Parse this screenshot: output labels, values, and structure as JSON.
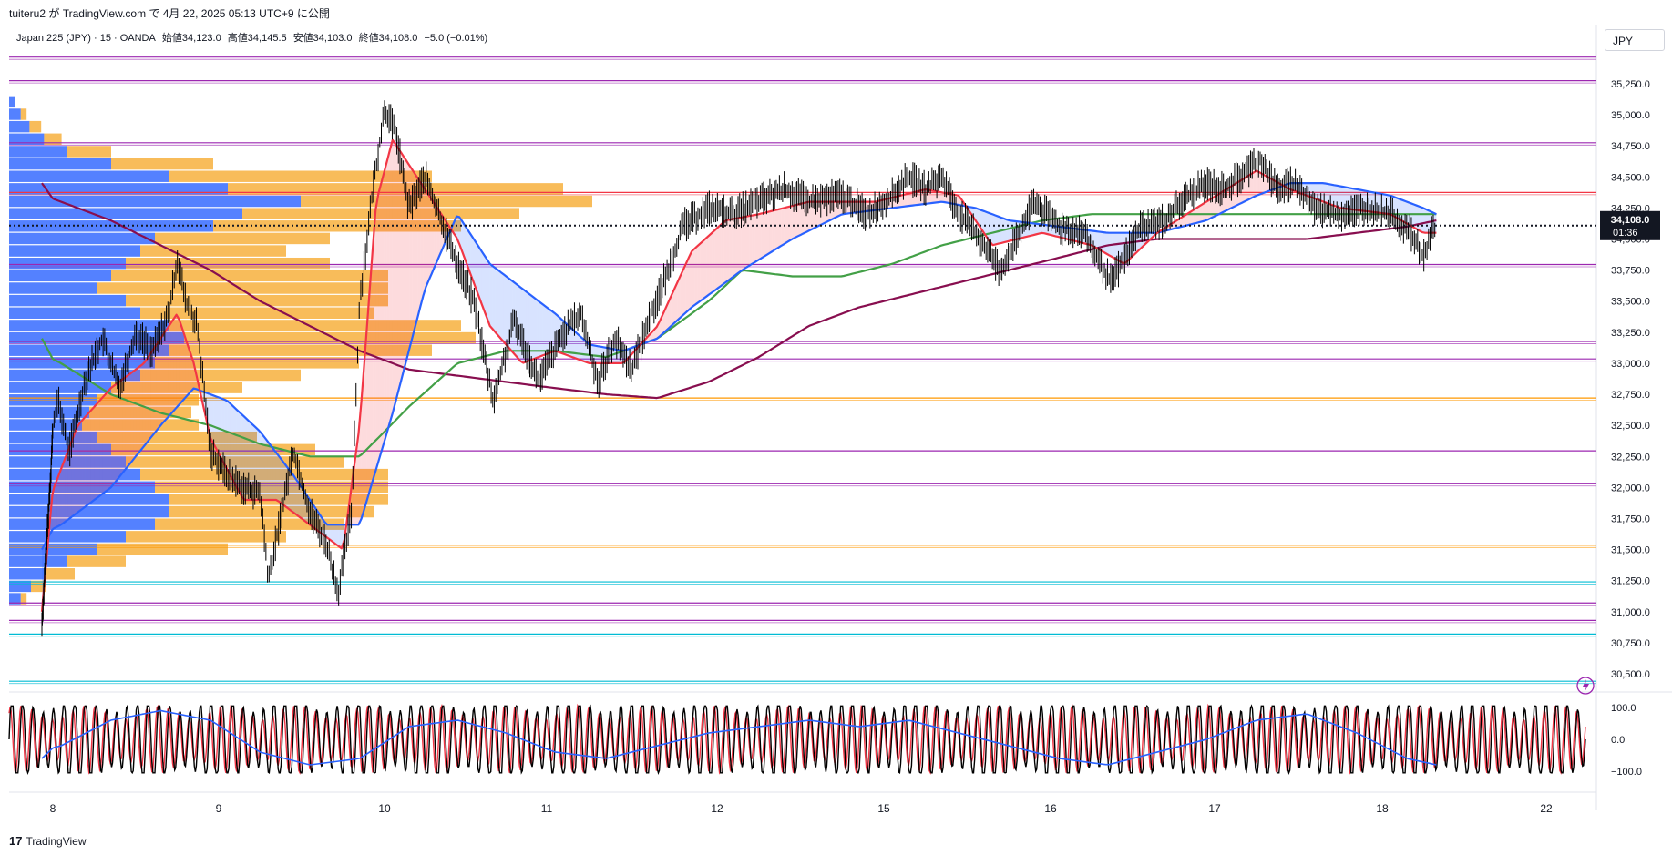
{
  "header": {
    "published_by": "tuiteru2 が TradingView.com で 4月 22, 2025 05:13 UTC+9 に公開",
    "symbol": "Japan 225 (JPY) · 15 · OANDA",
    "open": "始値34,123.0",
    "high": "高値34,145.5",
    "low": "安値34,103.0",
    "close": "終値34,108.0",
    "change": "−5.0 (−0.01%)",
    "currency": "JPY"
  },
  "price_tag": {
    "price": "34,108.0",
    "countdown": "01:36"
  },
  "brand": {
    "name": "TradingView"
  },
  "colors": {
    "candle": "#000000",
    "ma_fast": "#f23645",
    "ma_blue": "#2962ff",
    "ma_green": "#43a047",
    "ma_maroon": "#880e4f",
    "vp_blue": "#2962ff",
    "vp_orange": "#f5a623",
    "level_purple": "#9c27b0",
    "level_red": "#f23645",
    "level_orange": "#ff9800",
    "level_cyan": "#00bcd4",
    "stoch_k": "#000000",
    "stoch_d": "#f23645",
    "stoch_slow": "#2962ff"
  },
  "chart_data": {
    "type": "candlestick",
    "price_axis_ticks": [
      35250,
      35000,
      34750,
      34500,
      34250,
      34000,
      33750,
      33500,
      33250,
      33000,
      32750,
      32500,
      32250,
      32000,
      31750,
      31500,
      31250,
      31000,
      30750,
      30500
    ],
    "price_axis_labels": [
      "35,250.0",
      "35,000.0",
      "34,750.0",
      "34,500.0",
      "34,250.0",
      "34,000.0",
      "33,750.0",
      "33,500.0",
      "33,250.0",
      "33,000.0",
      "32,750.0",
      "32,500.0",
      "32,250.0",
      "32,000.0",
      "31,750.0",
      "31,500.0",
      "31,250.0",
      "31,000.0",
      "30,750.0",
      "30,500.0"
    ],
    "ylim": [
      30400,
      35550
    ],
    "date_labels": [
      "8",
      "9",
      "10",
      "11",
      "12",
      "15",
      "16",
      "17",
      "18",
      "22"
    ],
    "last_price": 34108,
    "horizontal_levels": [
      {
        "price": 35465,
        "color": "purple"
      },
      {
        "price": 35275,
        "color": "purple"
      },
      {
        "price": 34775,
        "color": "purple"
      },
      {
        "price": 34375,
        "color": "red"
      },
      {
        "price": 33795,
        "color": "purple"
      },
      {
        "price": 33175,
        "color": "purple"
      },
      {
        "price": 33035,
        "color": "purple"
      },
      {
        "price": 32720,
        "color": "orange"
      },
      {
        "price": 32295,
        "color": "purple"
      },
      {
        "price": 32030,
        "color": "purple"
      },
      {
        "price": 31535,
        "color": "orange"
      },
      {
        "price": 31240,
        "color": "cyan"
      },
      {
        "price": 31070,
        "color": "purple"
      },
      {
        "price": 30930,
        "color": "purple"
      },
      {
        "price": 30820,
        "color": "cyan"
      },
      {
        "price": 30440,
        "color": "cyan"
      }
    ],
    "price_path": [
      [
        0,
        30900
      ],
      [
        0.1,
        31500
      ],
      [
        0.2,
        32100
      ],
      [
        0.28,
        32700
      ],
      [
        0.35,
        32300
      ],
      [
        0.45,
        32900
      ],
      [
        0.55,
        33200
      ],
      [
        0.65,
        32800
      ],
      [
        0.75,
        33250
      ],
      [
        0.85,
        33100
      ],
      [
        0.95,
        33400
      ],
      [
        1.0,
        33850
      ],
      [
        1.05,
        33500
      ],
      [
        1.12,
        33300
      ],
      [
        1.2,
        32300
      ],
      [
        1.3,
        32100
      ],
      [
        1.4,
        32000
      ],
      [
        1.5,
        31950
      ],
      [
        1.55,
        31250
      ],
      [
        1.7,
        32300
      ],
      [
        1.8,
        31800
      ],
      [
        1.9,
        31550
      ],
      [
        1.97,
        31150
      ],
      [
        2.05,
        31800
      ],
      [
        2.1,
        33500
      ],
      [
        2.18,
        34400
      ],
      [
        2.25,
        35050
      ],
      [
        2.32,
        34850
      ],
      [
        2.4,
        34250
      ],
      [
        2.5,
        34500
      ],
      [
        2.6,
        34150
      ],
      [
        2.7,
        33800
      ],
      [
        2.8,
        33500
      ],
      [
        2.92,
        32700
      ],
      [
        3.05,
        33350
      ],
      [
        3.2,
        32850
      ],
      [
        3.35,
        33250
      ],
      [
        3.45,
        33400
      ],
      [
        3.55,
        32850
      ],
      [
        3.65,
        33200
      ],
      [
        3.75,
        32950
      ],
      [
        3.85,
        33350
      ],
      [
        3.95,
        33700
      ],
      [
        4.05,
        34100
      ],
      [
        4.2,
        34250
      ],
      [
        4.35,
        34200
      ],
      [
        4.5,
        34300
      ],
      [
        4.65,
        34400
      ],
      [
        4.8,
        34300
      ],
      [
        5.0,
        34350
      ],
      [
        5.15,
        34200
      ],
      [
        5.3,
        34350
      ],
      [
        5.4,
        34500
      ],
      [
        5.5,
        34400
      ],
      [
        5.6,
        34500
      ],
      [
        5.7,
        34200
      ],
      [
        5.8,
        34050
      ],
      [
        5.85,
        33950
      ],
      [
        5.95,
        33750
      ],
      [
        6.05,
        34000
      ],
      [
        6.15,
        34300
      ],
      [
        6.3,
        34100
      ],
      [
        6.45,
        34050
      ],
      [
        6.55,
        33800
      ],
      [
        6.62,
        33650
      ],
      [
        6.7,
        33850
      ],
      [
        6.8,
        34100
      ],
      [
        6.95,
        34150
      ],
      [
        7.05,
        34300
      ],
      [
        7.2,
        34450
      ],
      [
        7.3,
        34400
      ],
      [
        7.4,
        34500
      ],
      [
        7.52,
        34650
      ],
      [
        7.62,
        34400
      ],
      [
        7.72,
        34450
      ],
      [
        7.85,
        34250
      ],
      [
        8.0,
        34200
      ],
      [
        8.15,
        34250
      ],
      [
        8.3,
        34200
      ],
      [
        8.42,
        34050
      ],
      [
        8.5,
        33850
      ],
      [
        8.55,
        34050
      ],
      [
        8.58,
        34108
      ]
    ],
    "ma_fast": [
      [
        0,
        31000
      ],
      [
        0.2,
        31800
      ],
      [
        0.4,
        32500
      ],
      [
        0.6,
        32800
      ],
      [
        0.8,
        33000
      ],
      [
        1.0,
        33400
      ],
      [
        1.1,
        33000
      ],
      [
        1.2,
        32400
      ],
      [
        1.4,
        31900
      ],
      [
        1.6,
        31900
      ],
      [
        1.8,
        31700
      ],
      [
        2.0,
        31500
      ],
      [
        2.1,
        32500
      ],
      [
        2.2,
        34300
      ],
      [
        2.3,
        34800
      ],
      [
        2.5,
        34400
      ],
      [
        2.7,
        34000
      ],
      [
        2.9,
        33300
      ],
      [
        3.1,
        33000
      ],
      [
        3.3,
        33100
      ],
      [
        3.5,
        33000
      ],
      [
        3.7,
        33000
      ],
      [
        3.9,
        33300
      ],
      [
        4.1,
        33900
      ],
      [
        4.3,
        34150
      ],
      [
        4.5,
        34200
      ],
      [
        4.8,
        34300
      ],
      [
        5.2,
        34300
      ],
      [
        5.5,
        34400
      ],
      [
        5.7,
        34350
      ],
      [
        5.9,
        33950
      ],
      [
        6.2,
        34050
      ],
      [
        6.5,
        33950
      ],
      [
        6.7,
        33800
      ],
      [
        6.9,
        34050
      ],
      [
        7.2,
        34300
      ],
      [
        7.5,
        34550
      ],
      [
        7.7,
        34400
      ],
      [
        8.0,
        34250
      ],
      [
        8.3,
        34200
      ],
      [
        8.5,
        34050
      ],
      [
        8.58,
        34050
      ]
    ],
    "ma_blue": [
      [
        0,
        31500
      ],
      [
        0.3,
        31700
      ],
      [
        0.6,
        32000
      ],
      [
        0.9,
        32500
      ],
      [
        1.1,
        32800
      ],
      [
        1.3,
        32700
      ],
      [
        1.5,
        32450
      ],
      [
        1.7,
        32100
      ],
      [
        1.9,
        31700
      ],
      [
        2.1,
        31700
      ],
      [
        2.3,
        32600
      ],
      [
        2.5,
        33600
      ],
      [
        2.7,
        34200
      ],
      [
        2.9,
        33800
      ],
      [
        3.1,
        33600
      ],
      [
        3.3,
        33400
      ],
      [
        3.5,
        33150
      ],
      [
        3.7,
        33100
      ],
      [
        3.9,
        33200
      ],
      [
        4.1,
        33450
      ],
      [
        4.4,
        33750
      ],
      [
        4.7,
        34000
      ],
      [
        5.0,
        34200
      ],
      [
        5.3,
        34250
      ],
      [
        5.6,
        34300
      ],
      [
        5.8,
        34250
      ],
      [
        6.0,
        34150
      ],
      [
        6.3,
        34100
      ],
      [
        6.6,
        34050
      ],
      [
        6.9,
        34050
      ],
      [
        7.2,
        34150
      ],
      [
        7.5,
        34350
      ],
      [
        7.7,
        34450
      ],
      [
        7.9,
        34450
      ],
      [
        8.1,
        34400
      ],
      [
        8.3,
        34350
      ],
      [
        8.5,
        34250
      ],
      [
        8.58,
        34200
      ]
    ],
    "ma_green": [
      [
        0,
        33200
      ],
      [
        0.3,
        33000
      ],
      [
        0.6,
        32750
      ],
      [
        0.9,
        32600
      ],
      [
        1.2,
        32500
      ],
      [
        1.5,
        32350
      ],
      [
        1.8,
        32250
      ],
      [
        2.1,
        32250
      ],
      [
        2.4,
        32650
      ],
      [
        2.7,
        33000
      ],
      [
        3.0,
        33100
      ],
      [
        3.3,
        33100
      ],
      [
        3.6,
        33050
      ],
      [
        3.9,
        33200
      ],
      [
        4.2,
        33500
      ],
      [
        4.4,
        33750
      ],
      [
        4.7,
        33700
      ],
      [
        5.0,
        33700
      ],
      [
        5.3,
        33800
      ],
      [
        5.6,
        33950
      ],
      [
        5.9,
        34050
      ],
      [
        6.2,
        34150
      ],
      [
        6.5,
        34200
      ],
      [
        6.8,
        34200
      ],
      [
        7.1,
        34200
      ],
      [
        7.4,
        34200
      ],
      [
        7.7,
        34200
      ],
      [
        8.0,
        34200
      ],
      [
        8.3,
        34200
      ],
      [
        8.58,
        34200
      ]
    ],
    "ma_maroon": [
      [
        0,
        34450
      ],
      [
        0.3,
        34300
      ],
      [
        0.6,
        34150
      ],
      [
        0.9,
        33950
      ],
      [
        1.2,
        33750
      ],
      [
        1.5,
        33500
      ],
      [
        1.8,
        33300
      ],
      [
        2.1,
        33100
      ],
      [
        2.4,
        32950
      ],
      [
        2.7,
        32900
      ],
      [
        3.0,
        32850
      ],
      [
        3.3,
        32800
      ],
      [
        3.6,
        32750
      ],
      [
        3.9,
        32720
      ],
      [
        4.2,
        32850
      ],
      [
        4.5,
        33050
      ],
      [
        4.8,
        33300
      ],
      [
        5.1,
        33450
      ],
      [
        5.4,
        33550
      ],
      [
        5.7,
        33650
      ],
      [
        6.0,
        33750
      ],
      [
        6.3,
        33850
      ],
      [
        6.6,
        33950
      ],
      [
        6.9,
        34000
      ],
      [
        7.2,
        34000
      ],
      [
        7.5,
        34000
      ],
      [
        7.8,
        34000
      ],
      [
        8.1,
        34050
      ],
      [
        8.4,
        34100
      ],
      [
        8.58,
        34150
      ]
    ],
    "volume_profile": [
      {
        "price": 35100,
        "blue": 4,
        "orange": 0
      },
      {
        "price": 35000,
        "blue": 8,
        "orange": 4
      },
      {
        "price": 34900,
        "blue": 14,
        "orange": 8
      },
      {
        "price": 34800,
        "blue": 24,
        "orange": 12
      },
      {
        "price": 34700,
        "blue": 40,
        "orange": 30
      },
      {
        "price": 34600,
        "blue": 70,
        "orange": 70
      },
      {
        "price": 34500,
        "blue": 110,
        "orange": 180
      },
      {
        "price": 34400,
        "blue": 150,
        "orange": 230
      },
      {
        "price": 34300,
        "blue": 200,
        "orange": 200
      },
      {
        "price": 34200,
        "blue": 160,
        "orange": 190
      },
      {
        "price": 34100,
        "blue": 140,
        "orange": 170
      },
      {
        "price": 34000,
        "blue": 100,
        "orange": 120
      },
      {
        "price": 33900,
        "blue": 90,
        "orange": 100
      },
      {
        "price": 33800,
        "blue": 80,
        "orange": 140
      },
      {
        "price": 33700,
        "blue": 70,
        "orange": 190
      },
      {
        "price": 33600,
        "blue": 60,
        "orange": 200
      },
      {
        "price": 33500,
        "blue": 80,
        "orange": 180
      },
      {
        "price": 33400,
        "blue": 90,
        "orange": 160
      },
      {
        "price": 33300,
        "blue": 110,
        "orange": 200
      },
      {
        "price": 33200,
        "blue": 120,
        "orange": 200
      },
      {
        "price": 33100,
        "blue": 110,
        "orange": 180
      },
      {
        "price": 33000,
        "blue": 100,
        "orange": 140
      },
      {
        "price": 32900,
        "blue": 90,
        "orange": 110
      },
      {
        "price": 32800,
        "blue": 70,
        "orange": 90
      },
      {
        "price": 32700,
        "blue": 60,
        "orange": 70
      },
      {
        "price": 32600,
        "blue": 55,
        "orange": 70
      },
      {
        "price": 32500,
        "blue": 50,
        "orange": 80
      },
      {
        "price": 32400,
        "blue": 60,
        "orange": 110
      },
      {
        "price": 32300,
        "blue": 70,
        "orange": 140
      },
      {
        "price": 32200,
        "blue": 80,
        "orange": 150
      },
      {
        "price": 32100,
        "blue": 90,
        "orange": 170
      },
      {
        "price": 32000,
        "blue": 100,
        "orange": 160
      },
      {
        "price": 31900,
        "blue": 110,
        "orange": 150
      },
      {
        "price": 31800,
        "blue": 110,
        "orange": 140
      },
      {
        "price": 31700,
        "blue": 100,
        "orange": 130
      },
      {
        "price": 31600,
        "blue": 80,
        "orange": 110
      },
      {
        "price": 31500,
        "blue": 60,
        "orange": 90
      },
      {
        "price": 31400,
        "blue": 40,
        "orange": 40
      },
      {
        "price": 31300,
        "blue": 25,
        "orange": 20
      },
      {
        "price": 31200,
        "blue": 15,
        "orange": 10
      },
      {
        "price": 31100,
        "blue": 8,
        "orange": 4
      }
    ],
    "oscillator": {
      "axis_labels": [
        "100.0",
        "0.0",
        "−100.0"
      ],
      "ylim": [
        -110,
        110
      ],
      "cycles_k": 150,
      "cycles_d": 150,
      "slow_path": [
        [
          0,
          -60
        ],
        [
          0.3,
          -20
        ],
        [
          0.6,
          60
        ],
        [
          0.9,
          90
        ],
        [
          1.2,
          60
        ],
        [
          1.5,
          -40
        ],
        [
          1.8,
          -80
        ],
        [
          2.1,
          -60
        ],
        [
          2.4,
          40
        ],
        [
          2.7,
          60
        ],
        [
          3.0,
          20
        ],
        [
          3.3,
          -40
        ],
        [
          3.6,
          -60
        ],
        [
          3.9,
          -20
        ],
        [
          4.2,
          20
        ],
        [
          4.5,
          40
        ],
        [
          4.8,
          60
        ],
        [
          5.1,
          40
        ],
        [
          5.4,
          60
        ],
        [
          5.7,
          20
        ],
        [
          6.0,
          -20
        ],
        [
          6.3,
          -60
        ],
        [
          6.6,
          -80
        ],
        [
          6.9,
          -40
        ],
        [
          7.2,
          0
        ],
        [
          7.5,
          60
        ],
        [
          7.8,
          80
        ],
        [
          8.1,
          20
        ],
        [
          8.4,
          -60
        ],
        [
          8.58,
          -80
        ]
      ]
    }
  }
}
